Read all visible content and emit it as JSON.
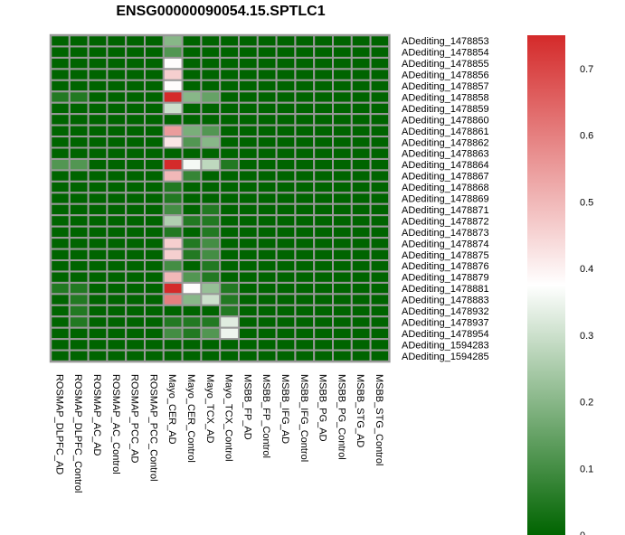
{
  "chart_data": {
    "type": "heatmap",
    "title": "ENSG00000090054.15.SPTLC1",
    "columns": [
      "ROSMAP_DLPFC_AD",
      "ROSMAP_DLPFC_Control",
      "ROSMAP_AC_AD",
      "ROSMAP_AC_Control",
      "ROSMAP_PCC_AD",
      "ROSMAP_PCC_Control",
      "Mayo_CER_AD",
      "Mayo_CER_Control",
      "Mayo_TCX_AD",
      "Mayo_TCX_Control",
      "MSBB_FP_AD",
      "MSBB_FP_Control",
      "MSBB_IFG_AD",
      "MSBB_IFG_Control",
      "MSBB_PG_AD",
      "MSBB_PG_Control",
      "MSBB_STG_AD",
      "MSBB_STG_Control"
    ],
    "rows": [
      "ADediting_1478853",
      "ADediting_1478854",
      "ADediting_1478855",
      "ADediting_1478856",
      "ADediting_1478857",
      "ADediting_1478858",
      "ADediting_1478859",
      "ADediting_1478860",
      "ADediting_1478861",
      "ADediting_1478862",
      "ADediting_1478863",
      "ADediting_1478864",
      "ADediting_1478867",
      "ADediting_1478868",
      "ADediting_1478869",
      "ADediting_1478871",
      "ADediting_1478872",
      "ADediting_1478873",
      "ADediting_1478874",
      "ADediting_1478875",
      "ADediting_1478876",
      "ADediting_1478879",
      "ADediting_1478881",
      "ADediting_1478883",
      "ADediting_1478932",
      "ADediting_1478937",
      "ADediting_1478954",
      "ADediting_1594283",
      "ADediting_1594285"
    ],
    "values": [
      [
        0,
        0,
        0,
        0,
        0,
        0,
        0.2,
        0,
        0,
        0,
        0,
        0,
        0,
        0,
        0,
        0,
        0,
        0
      ],
      [
        0,
        0,
        0,
        0,
        0,
        0,
        0.12,
        0,
        0,
        0,
        0,
        0,
        0,
        0,
        0,
        0,
        0,
        0
      ],
      [
        0,
        0,
        0,
        0,
        0,
        0,
        0.38,
        0,
        0,
        0,
        0,
        0,
        0,
        0,
        0,
        0,
        0,
        0
      ],
      [
        0,
        0,
        0,
        0,
        0,
        0,
        0.46,
        0,
        0,
        0,
        0,
        0,
        0,
        0,
        0,
        0,
        0,
        0
      ],
      [
        0,
        0,
        0,
        0,
        0,
        0,
        0.38,
        0,
        0,
        0,
        0,
        0,
        0,
        0,
        0,
        0,
        0,
        0
      ],
      [
        0.05,
        0.05,
        0,
        0,
        0,
        0,
        0.75,
        0.2,
        0.15,
        0,
        0,
        0,
        0,
        0,
        0,
        0,
        0,
        0
      ],
      [
        0,
        0,
        0,
        0,
        0,
        0,
        0.3,
        0,
        0,
        0,
        0,
        0,
        0,
        0,
        0,
        0,
        0,
        0
      ],
      [
        0,
        0,
        0,
        0,
        0,
        0,
        0,
        0,
        0,
        0,
        0,
        0,
        0,
        0,
        0,
        0,
        0,
        0
      ],
      [
        0,
        0,
        0,
        0,
        0,
        0,
        0.55,
        0.18,
        0.12,
        0,
        0,
        0,
        0,
        0,
        0,
        0,
        0,
        0
      ],
      [
        0,
        0,
        0,
        0,
        0,
        0,
        0.42,
        0.12,
        0.2,
        0,
        0,
        0,
        0,
        0,
        0,
        0,
        0,
        0
      ],
      [
        0,
        0,
        0,
        0,
        0,
        0,
        0,
        0,
        0,
        0,
        0,
        0,
        0,
        0,
        0,
        0,
        0,
        0
      ],
      [
        0.12,
        0.12,
        0,
        0,
        0,
        0,
        0.75,
        0.36,
        0.28,
        0.05,
        0,
        0,
        0,
        0,
        0,
        0,
        0,
        0
      ],
      [
        0,
        0,
        0,
        0,
        0,
        0,
        0.5,
        0.08,
        0,
        0,
        0,
        0,
        0,
        0,
        0,
        0,
        0,
        0
      ],
      [
        0,
        0,
        0,
        0,
        0,
        0,
        0.05,
        0,
        0,
        0,
        0,
        0,
        0,
        0,
        0,
        0,
        0,
        0
      ],
      [
        0,
        0,
        0,
        0,
        0,
        0,
        0.05,
        0,
        0,
        0,
        0,
        0,
        0,
        0,
        0,
        0,
        0,
        0
      ],
      [
        0,
        0,
        0,
        0,
        0,
        0,
        0.1,
        0,
        0.05,
        0,
        0,
        0,
        0,
        0,
        0,
        0,
        0,
        0
      ],
      [
        0,
        0,
        0,
        0,
        0,
        0,
        0.26,
        0.05,
        0.05,
        0,
        0,
        0,
        0,
        0,
        0,
        0,
        0,
        0
      ],
      [
        0,
        0,
        0,
        0,
        0,
        0,
        0.05,
        0,
        0.05,
        0,
        0,
        0,
        0,
        0,
        0,
        0,
        0,
        0
      ],
      [
        0,
        0,
        0,
        0,
        0,
        0,
        0.46,
        0.05,
        0.1,
        0,
        0,
        0,
        0,
        0,
        0,
        0,
        0,
        0
      ],
      [
        0,
        0,
        0,
        0,
        0,
        0,
        0.46,
        0.05,
        0.1,
        0,
        0,
        0,
        0,
        0,
        0,
        0,
        0,
        0
      ],
      [
        0,
        0,
        0,
        0,
        0,
        0,
        0.1,
        0,
        0.05,
        0,
        0,
        0,
        0,
        0,
        0,
        0,
        0,
        0
      ],
      [
        0,
        0,
        0,
        0,
        0,
        0,
        0.5,
        0.12,
        0.05,
        0,
        0,
        0,
        0,
        0,
        0,
        0,
        0,
        0
      ],
      [
        0.05,
        0.05,
        0,
        0,
        0,
        0,
        0.75,
        0.38,
        0.22,
        0.05,
        0,
        0,
        0,
        0,
        0,
        0,
        0,
        0
      ],
      [
        0,
        0.05,
        0,
        0,
        0,
        0,
        0.6,
        0.2,
        0.3,
        0.05,
        0,
        0,
        0,
        0,
        0,
        0,
        0,
        0
      ],
      [
        0,
        0.05,
        0,
        0,
        0,
        0,
        0,
        0,
        0,
        0.05,
        0,
        0,
        0,
        0,
        0,
        0,
        0,
        0
      ],
      [
        0,
        0.05,
        0,
        0,
        0,
        0,
        0.05,
        0.05,
        0.05,
        0.33,
        0,
        0,
        0,
        0,
        0,
        0,
        0,
        0
      ],
      [
        0,
        0,
        0,
        0,
        0,
        0,
        0.1,
        0.05,
        0.12,
        0.35,
        0,
        0,
        0,
        0,
        0,
        0,
        0,
        0
      ],
      [
        0,
        0,
        0,
        0,
        0,
        0,
        0,
        0,
        0,
        0,
        0,
        0,
        0,
        0,
        0,
        0,
        0,
        0
      ],
      [
        0,
        0,
        0,
        0,
        0,
        0,
        0,
        0,
        0,
        0,
        0,
        0,
        0,
        0,
        0,
        0,
        0,
        0
      ]
    ],
    "color_scale": {
      "low": "#006400",
      "mid": "#ffffff",
      "high": "#d42a2a",
      "min": 0,
      "mid_value": 0.375,
      "max": 0.75,
      "ticks": [
        0,
        0.1,
        0.2,
        0.3,
        0.4,
        0.5,
        0.6,
        0.7
      ]
    },
    "grid_color": "#999999",
    "legend": "right"
  }
}
